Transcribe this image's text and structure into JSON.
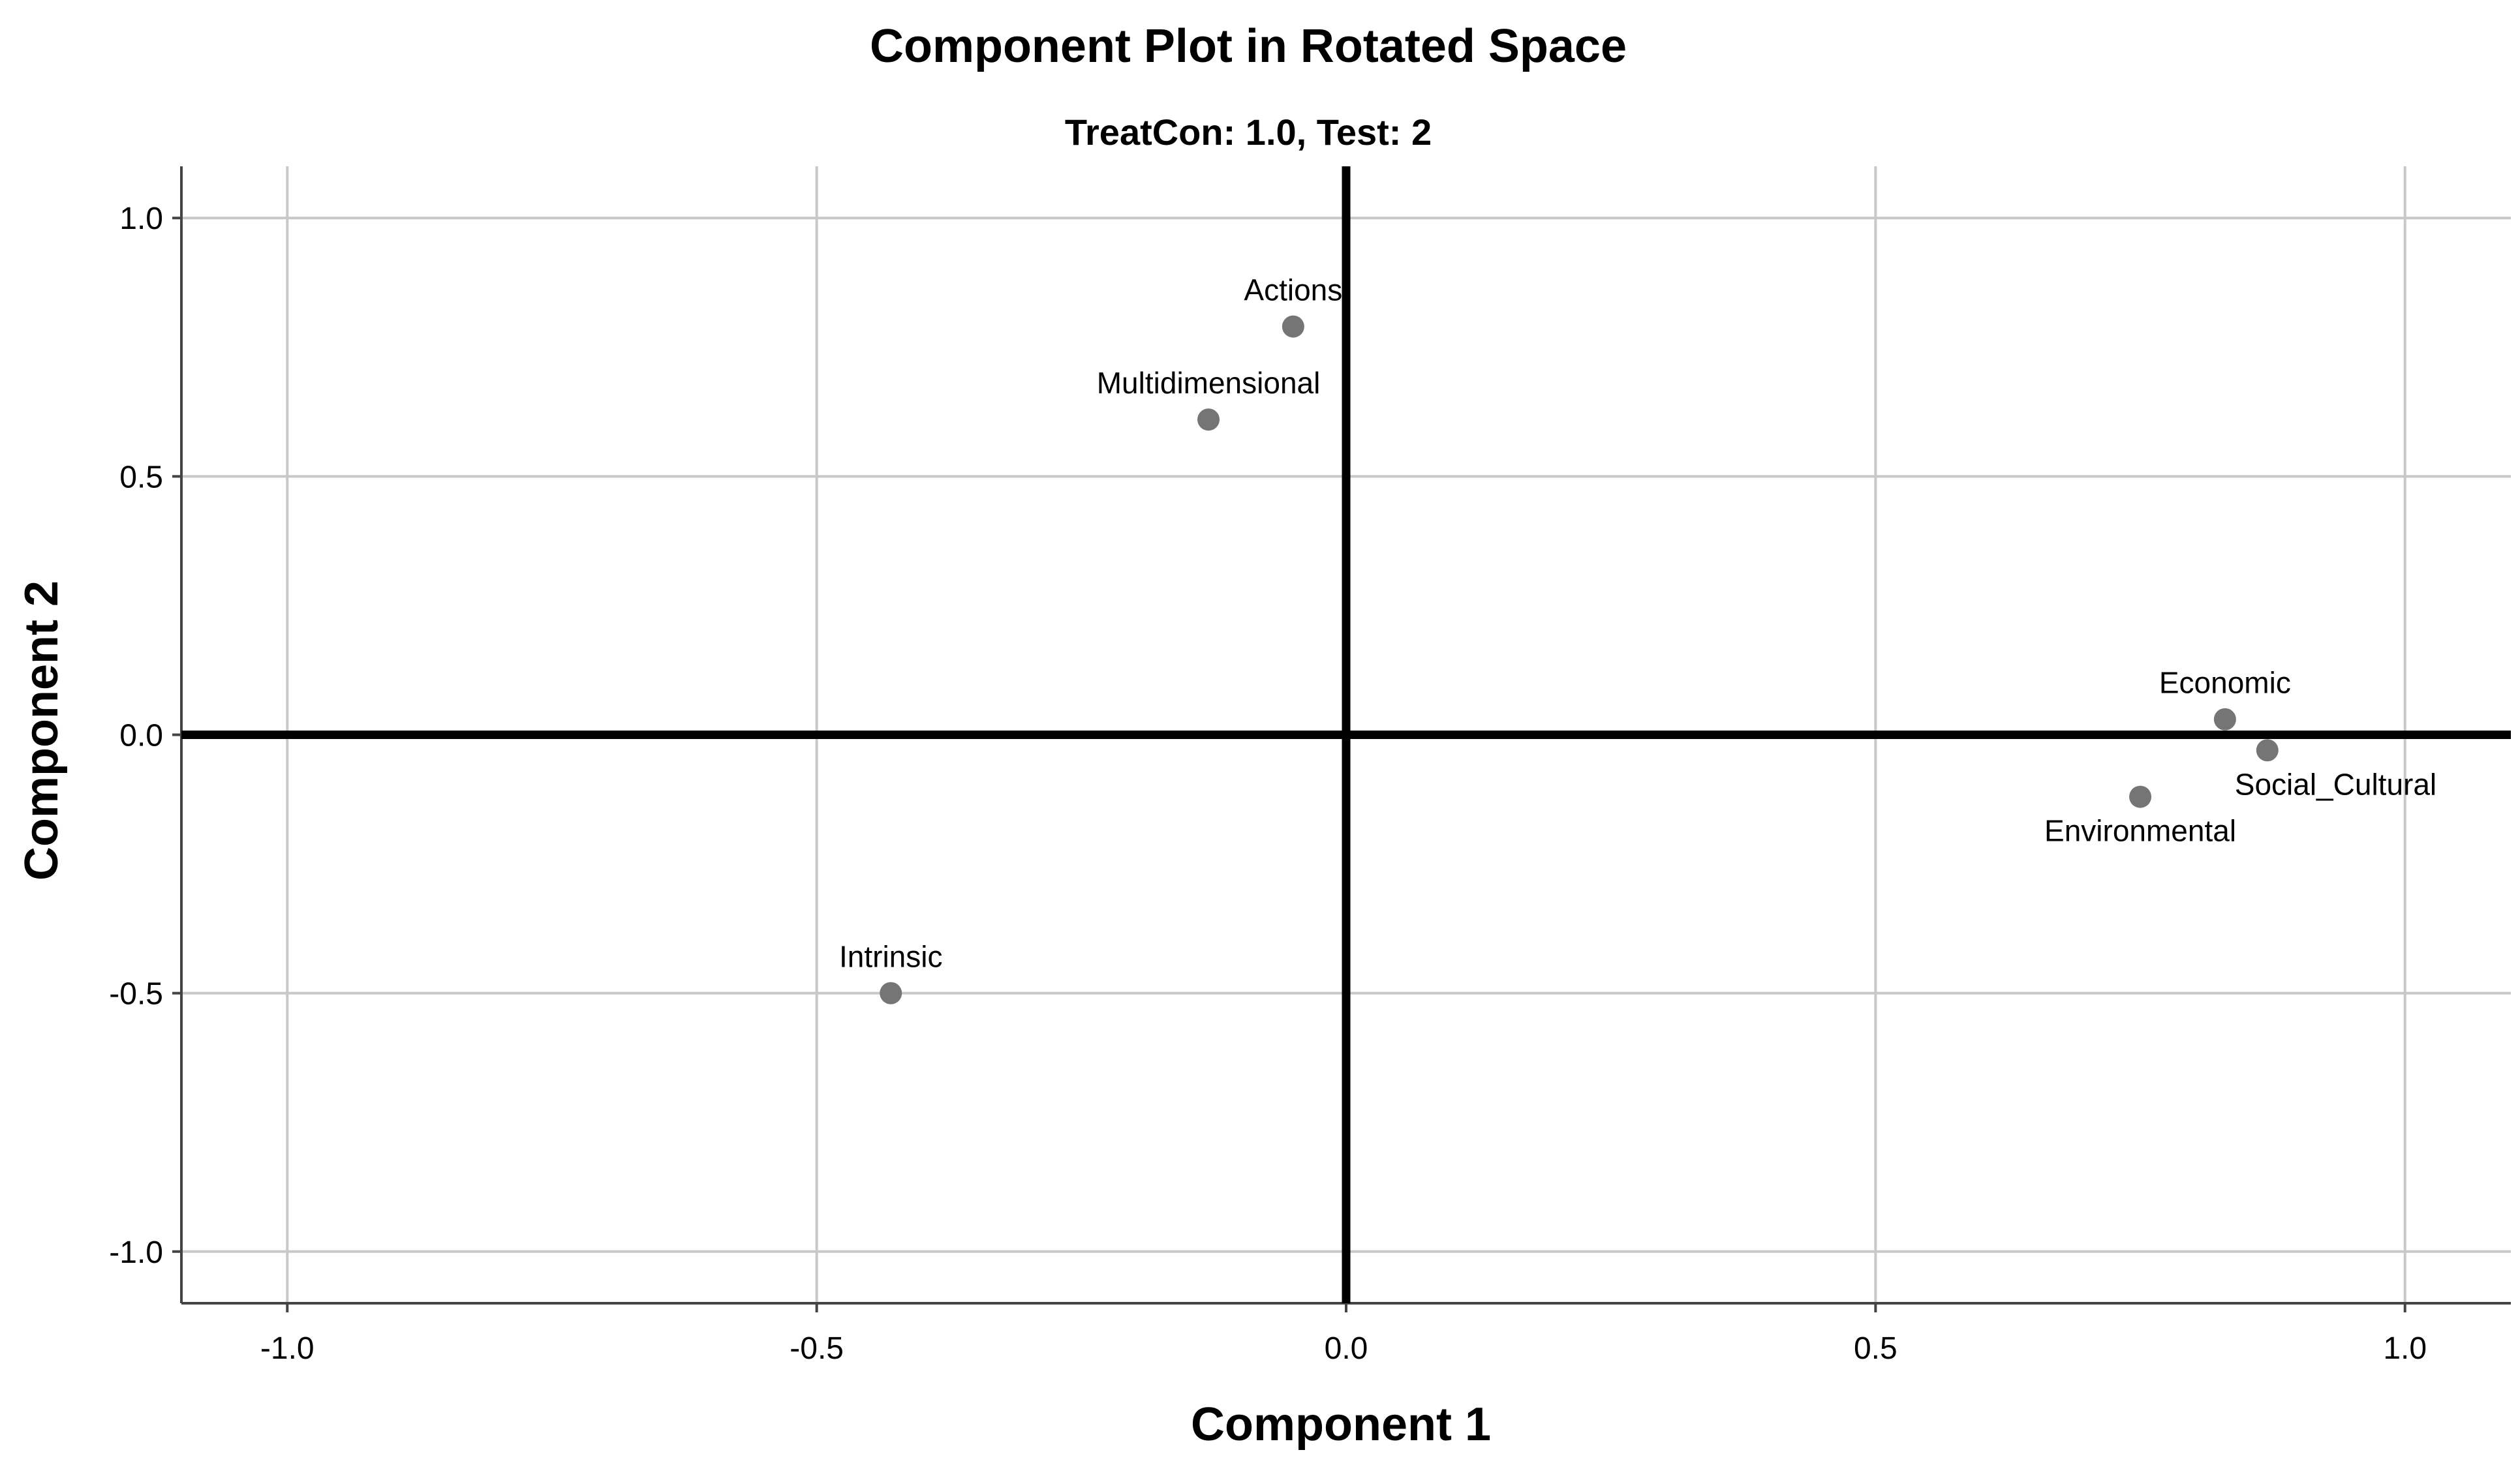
{
  "chart_data": {
    "type": "scatter",
    "title": "Component Plot in Rotated Space",
    "subtitle": "TreatCon: 1.0, Test: 2",
    "xlabel": "Component 1",
    "ylabel": "Component 2",
    "xlim": [
      -1.1,
      1.1
    ],
    "ylim": [
      -1.1,
      1.1
    ],
    "x_ticks": [
      -1.0,
      -0.5,
      0.0,
      0.5,
      1.0
    ],
    "y_ticks": [
      1.0,
      0.5,
      0.0,
      -0.5,
      -1.0
    ],
    "x_tick_labels": [
      "-1.0",
      "-0.5",
      "0.0",
      "0.5",
      "1.0"
    ],
    "y_tick_labels": [
      "1.0",
      "0.5",
      "0.0",
      "-0.5",
      "-1.0"
    ],
    "grid": true,
    "point_color": "#757575",
    "points": [
      {
        "label": "Actions",
        "x": -0.05,
        "y": 0.79,
        "label_pos": "above"
      },
      {
        "label": "Multidimensional",
        "x": -0.13,
        "y": 0.61,
        "label_pos": "above"
      },
      {
        "label": "Economic",
        "x": 0.83,
        "y": 0.03,
        "label_pos": "above"
      },
      {
        "label": "Social_Cultural",
        "x": 0.87,
        "y": -0.03,
        "label_pos": "below-right"
      },
      {
        "label": "Environmental",
        "x": 0.75,
        "y": -0.12,
        "label_pos": "below"
      },
      {
        "label": "Intrinsic",
        "x": -0.43,
        "y": -0.5,
        "label_pos": "above"
      }
    ]
  }
}
